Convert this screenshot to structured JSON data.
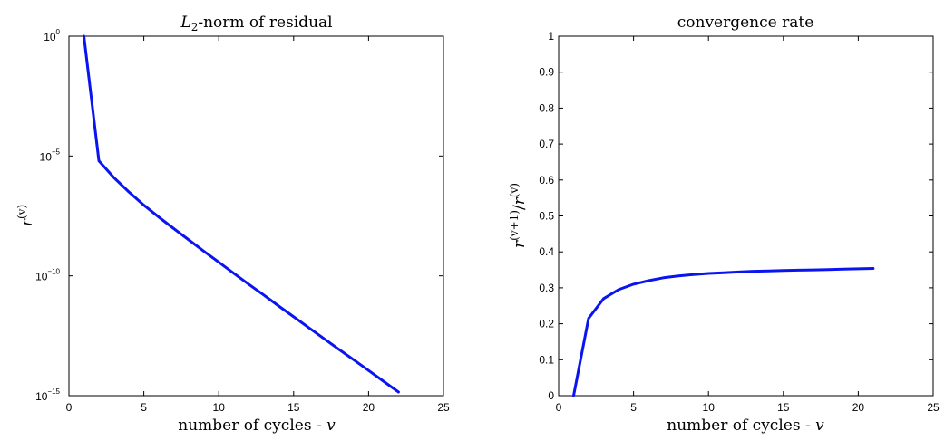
{
  "chart_data": [
    {
      "type": "line",
      "title_math": "L",
      "title_sub": "2",
      "title_rest": "-norm of residual",
      "xlabel": "number of cycles - ",
      "xlabel_var": "v",
      "ylabel": "r",
      "ylabel_sup": "(v)",
      "xlim": [
        0,
        25
      ],
      "ylim_log10": [
        -15,
        0
      ],
      "yscale": "log",
      "xticks": [
        0,
        5,
        10,
        15,
        20,
        25
      ],
      "yticks": [
        {
          "base": "10",
          "exp": "0",
          "log10": 0
        },
        {
          "base": "10",
          "exp": "−5",
          "log10": -5
        },
        {
          "base": "10",
          "exp": "−10",
          "log10": -10
        },
        {
          "base": "10",
          "exp": "−15",
          "log10": -15
        }
      ],
      "grid": false,
      "line_color": "#0a14f0",
      "series": [
        {
          "x": [
            1,
            2,
            3,
            4,
            5,
            6,
            7,
            8,
            9,
            10,
            11,
            12,
            13,
            14,
            15,
            16,
            17,
            18,
            19,
            20,
            21,
            22
          ],
          "log10_y": [
            0.0,
            -5.2,
            -5.9,
            -6.5,
            -7.05,
            -7.55,
            -8.03,
            -8.5,
            -8.97,
            -9.43,
            -9.89,
            -10.35,
            -10.8,
            -11.26,
            -11.71,
            -12.16,
            -12.61,
            -13.06,
            -13.5,
            -13.95,
            -14.4,
            -14.85
          ]
        }
      ]
    },
    {
      "type": "line",
      "title": "convergence rate",
      "xlabel": "number of cycles - ",
      "xlabel_var": "v",
      "ylabel_sup_num": "(v+1)",
      "ylabel_sup_den": "(v)",
      "ylabel": "r",
      "xlim": [
        0,
        25
      ],
      "ylim": [
        0,
        1
      ],
      "xticks": [
        0,
        5,
        10,
        15,
        20,
        25
      ],
      "yticks": [
        0,
        0.1,
        0.2,
        0.3,
        0.4,
        0.5,
        0.6,
        0.7,
        0.8,
        0.9,
        1
      ],
      "grid": false,
      "line_color": "#0a14f0",
      "series": [
        {
          "x": [
            1,
            2,
            3,
            4,
            5,
            6,
            7,
            8,
            9,
            10,
            11,
            12,
            13,
            14,
            15,
            16,
            17,
            18,
            19,
            20,
            21
          ],
          "values": [
            0.0,
            0.215,
            0.27,
            0.295,
            0.31,
            0.32,
            0.328,
            0.333,
            0.337,
            0.34,
            0.342,
            0.344,
            0.346,
            0.347,
            0.348,
            0.349,
            0.35,
            0.351,
            0.352,
            0.353,
            0.354
          ]
        }
      ]
    }
  ]
}
